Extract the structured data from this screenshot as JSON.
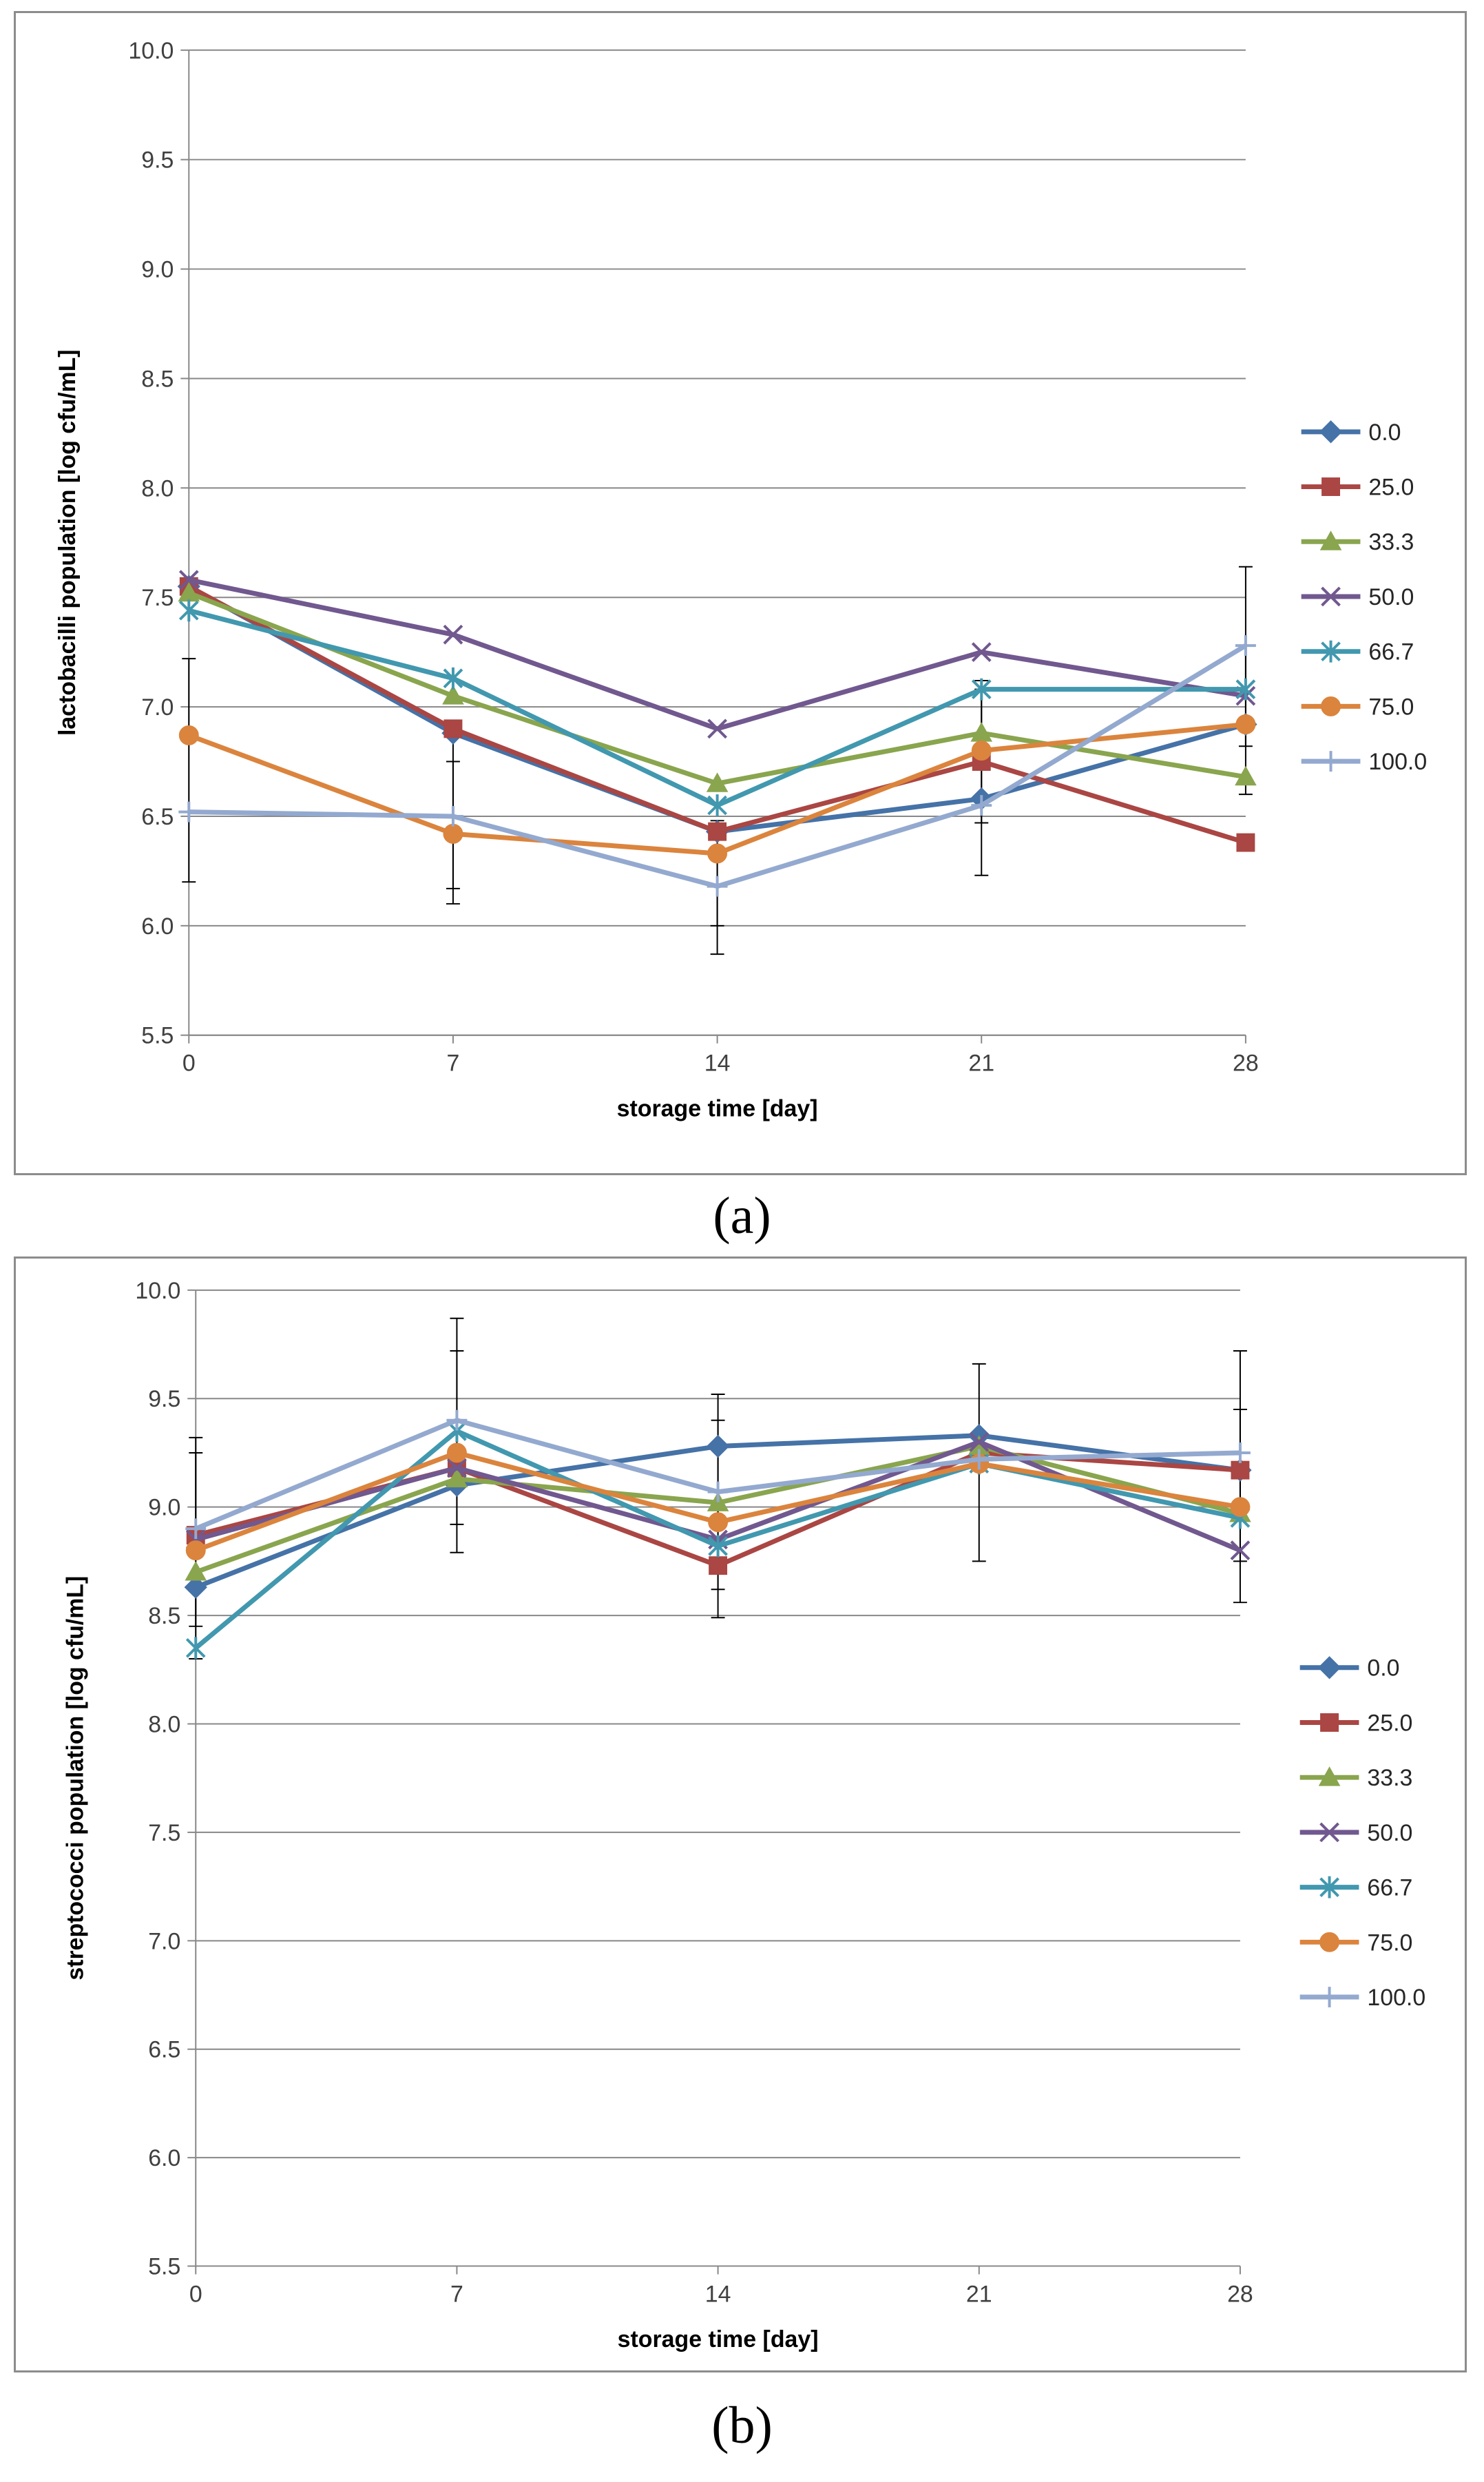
{
  "captions": {
    "a": "(a)",
    "b": "(b)"
  },
  "chart_data": [
    {
      "type": "line",
      "id": "a",
      "title": "",
      "xlabel": "storage time [day]",
      "ylabel": "lactobacilli population [log cfu/mL]",
      "x": [
        0,
        7,
        14,
        21,
        28
      ],
      "x_tick_labels": [
        "0",
        "7",
        "14",
        "21",
        "28"
      ],
      "ylim": [
        5.5,
        10.0
      ],
      "y_ticks": [
        5.5,
        6.0,
        6.5,
        7.0,
        7.5,
        8.0,
        8.5,
        9.0,
        9.5,
        10.0
      ],
      "y_tick_labels": [
        "5.5",
        "6.0",
        "6.5",
        "7.0",
        "7.5",
        "8.0",
        "8.5",
        "9.0",
        "9.5",
        "10.0"
      ],
      "grid": "horizontal",
      "legend_position": "right",
      "series": [
        {
          "name": "0.0",
          "color": "#4572A7",
          "marker": "diamond",
          "values": [
            7.55,
            6.88,
            6.43,
            6.58,
            6.92
          ]
        },
        {
          "name": "25.0",
          "color": "#AA4643",
          "marker": "square",
          "values": [
            7.55,
            6.9,
            6.43,
            6.75,
            6.38
          ]
        },
        {
          "name": "33.3",
          "color": "#89A54E",
          "marker": "triangle",
          "values": [
            7.52,
            7.05,
            6.65,
            6.88,
            6.68
          ]
        },
        {
          "name": "50.0",
          "color": "#71588F",
          "marker": "x",
          "values": [
            7.58,
            7.33,
            6.9,
            7.25,
            7.05
          ]
        },
        {
          "name": "66.7",
          "color": "#4198AF",
          "marker": "asterisk",
          "values": [
            7.44,
            7.13,
            6.55,
            7.08,
            7.08
          ]
        },
        {
          "name": "75.0",
          "color": "#DB843D",
          "marker": "circle",
          "values": [
            6.87,
            6.42,
            6.33,
            6.8,
            6.92
          ]
        },
        {
          "name": "100.0",
          "color": "#93A9CF",
          "marker": "plus",
          "values": [
            6.52,
            6.5,
            6.18,
            6.55,
            7.28
          ]
        }
      ],
      "error_bars": [
        {
          "x": 0,
          "low": 6.2,
          "high": 7.22
        },
        {
          "x": 7,
          "low": 6.1,
          "high": 6.92
        },
        {
          "x": 7,
          "low": 6.17,
          "high": 6.75
        },
        {
          "x": 14,
          "low": 5.87,
          "high": 6.42
        },
        {
          "x": 14,
          "low": 6.0,
          "high": 6.48
        },
        {
          "x": 21,
          "low": 6.23,
          "high": 7.12
        },
        {
          "x": 21,
          "low": 6.47,
          "high": 7.08
        },
        {
          "x": 28,
          "low": 6.6,
          "high": 7.64
        },
        {
          "x": 28,
          "low": 6.82,
          "high": 7.28
        }
      ]
    },
    {
      "type": "line",
      "id": "b",
      "title": "",
      "xlabel": "storage time [day]",
      "ylabel": "streptococci population [log cfu/mL]",
      "x": [
        0,
        7,
        14,
        21,
        28
      ],
      "x_tick_labels": [
        "0",
        "7",
        "14",
        "21",
        "28"
      ],
      "ylim": [
        5.5,
        10.0
      ],
      "y_ticks": [
        5.5,
        6.0,
        6.5,
        7.0,
        7.5,
        8.0,
        8.5,
        9.0,
        9.5,
        10.0
      ],
      "y_tick_labels": [
        "5.5",
        "6.0",
        "6.5",
        "7.0",
        "7.5",
        "8.0",
        "8.5",
        "9.0",
        "9.5",
        "10.0"
      ],
      "grid": "horizontal",
      "legend_position": "right",
      "series": [
        {
          "name": "0.0",
          "color": "#4572A7",
          "marker": "diamond",
          "values": [
            8.63,
            9.1,
            9.28,
            9.33,
            9.17
          ]
        },
        {
          "name": "25.0",
          "color": "#AA4643",
          "marker": "square",
          "values": [
            8.87,
            9.18,
            8.73,
            9.25,
            9.17
          ]
        },
        {
          "name": "33.3",
          "color": "#89A54E",
          "marker": "triangle",
          "values": [
            8.7,
            9.13,
            9.02,
            9.28,
            8.97
          ]
        },
        {
          "name": "50.0",
          "color": "#71588F",
          "marker": "x",
          "values": [
            8.85,
            9.18,
            8.85,
            9.3,
            8.8
          ]
        },
        {
          "name": "66.7",
          "color": "#4198AF",
          "marker": "asterisk",
          "values": [
            8.35,
            9.35,
            8.82,
            9.2,
            8.95
          ]
        },
        {
          "name": "75.0",
          "color": "#DB843D",
          "marker": "circle",
          "values": [
            8.8,
            9.25,
            8.93,
            9.2,
            9.0
          ]
        },
        {
          "name": "100.0",
          "color": "#93A9CF",
          "marker": "plus",
          "values": [
            8.9,
            9.4,
            9.07,
            9.22,
            9.25
          ]
        }
      ],
      "error_bars": [
        {
          "x": 0,
          "low": 8.3,
          "high": 9.32
        },
        {
          "x": 0,
          "low": 8.45,
          "high": 9.25
        },
        {
          "x": 7,
          "low": 8.79,
          "high": 9.87
        },
        {
          "x": 7,
          "low": 8.92,
          "high": 9.72
        },
        {
          "x": 14,
          "low": 8.49,
          "high": 9.52
        },
        {
          "x": 14,
          "low": 8.62,
          "high": 9.4
        },
        {
          "x": 21,
          "low": 8.75,
          "high": 9.66
        },
        {
          "x": 28,
          "low": 8.56,
          "high": 9.72
        },
        {
          "x": 28,
          "low": 8.75,
          "high": 9.45
        }
      ]
    }
  ]
}
